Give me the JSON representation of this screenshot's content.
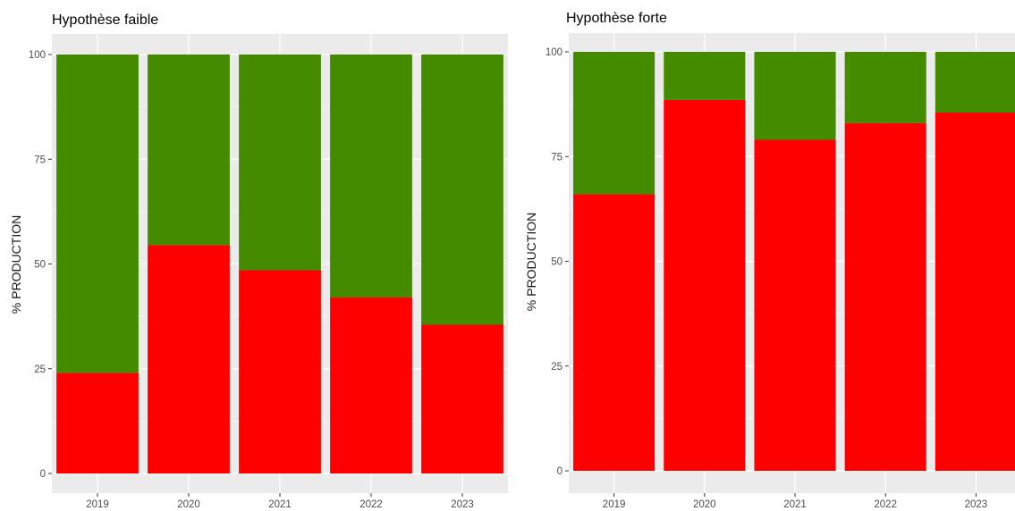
{
  "chart_data": [
    {
      "type": "bar",
      "stacked": true,
      "title": "Hypothèse faible",
      "xlabel": "",
      "ylabel": "% PRODUCTION",
      "categories": [
        "2019",
        "2020",
        "2021",
        "2022",
        "2023"
      ],
      "yticks": [
        "0",
        "25",
        "50",
        "75",
        "100"
      ],
      "ylim": [
        0,
        100
      ],
      "grid": true,
      "series": [
        {
          "color": "#ff0000",
          "values": [
            24,
            54.5,
            48.5,
            42,
            35.5
          ]
        },
        {
          "color": "#458b00",
          "values": [
            76,
            45.5,
            51.5,
            58,
            64.5
          ]
        }
      ]
    },
    {
      "type": "bar",
      "stacked": true,
      "title": "Hypothèse forte",
      "xlabel": "",
      "ylabel": "% PRODUCTION",
      "categories": [
        "2019",
        "2020",
        "2021",
        "2022",
        "2023"
      ],
      "yticks": [
        "0",
        "25",
        "50",
        "75",
        "100"
      ],
      "ylim": [
        0,
        100
      ],
      "grid": true,
      "series": [
        {
          "color": "#ff0000",
          "values": [
            66,
            88.5,
            79,
            83,
            85.5
          ]
        },
        {
          "color": "#458b00",
          "values": [
            34,
            11.5,
            21,
            17,
            14.5
          ]
        }
      ]
    }
  ],
  "theme": {
    "panel_background": "#ebebeb",
    "grid_color": "#ffffff",
    "tick_color": "#333333"
  }
}
